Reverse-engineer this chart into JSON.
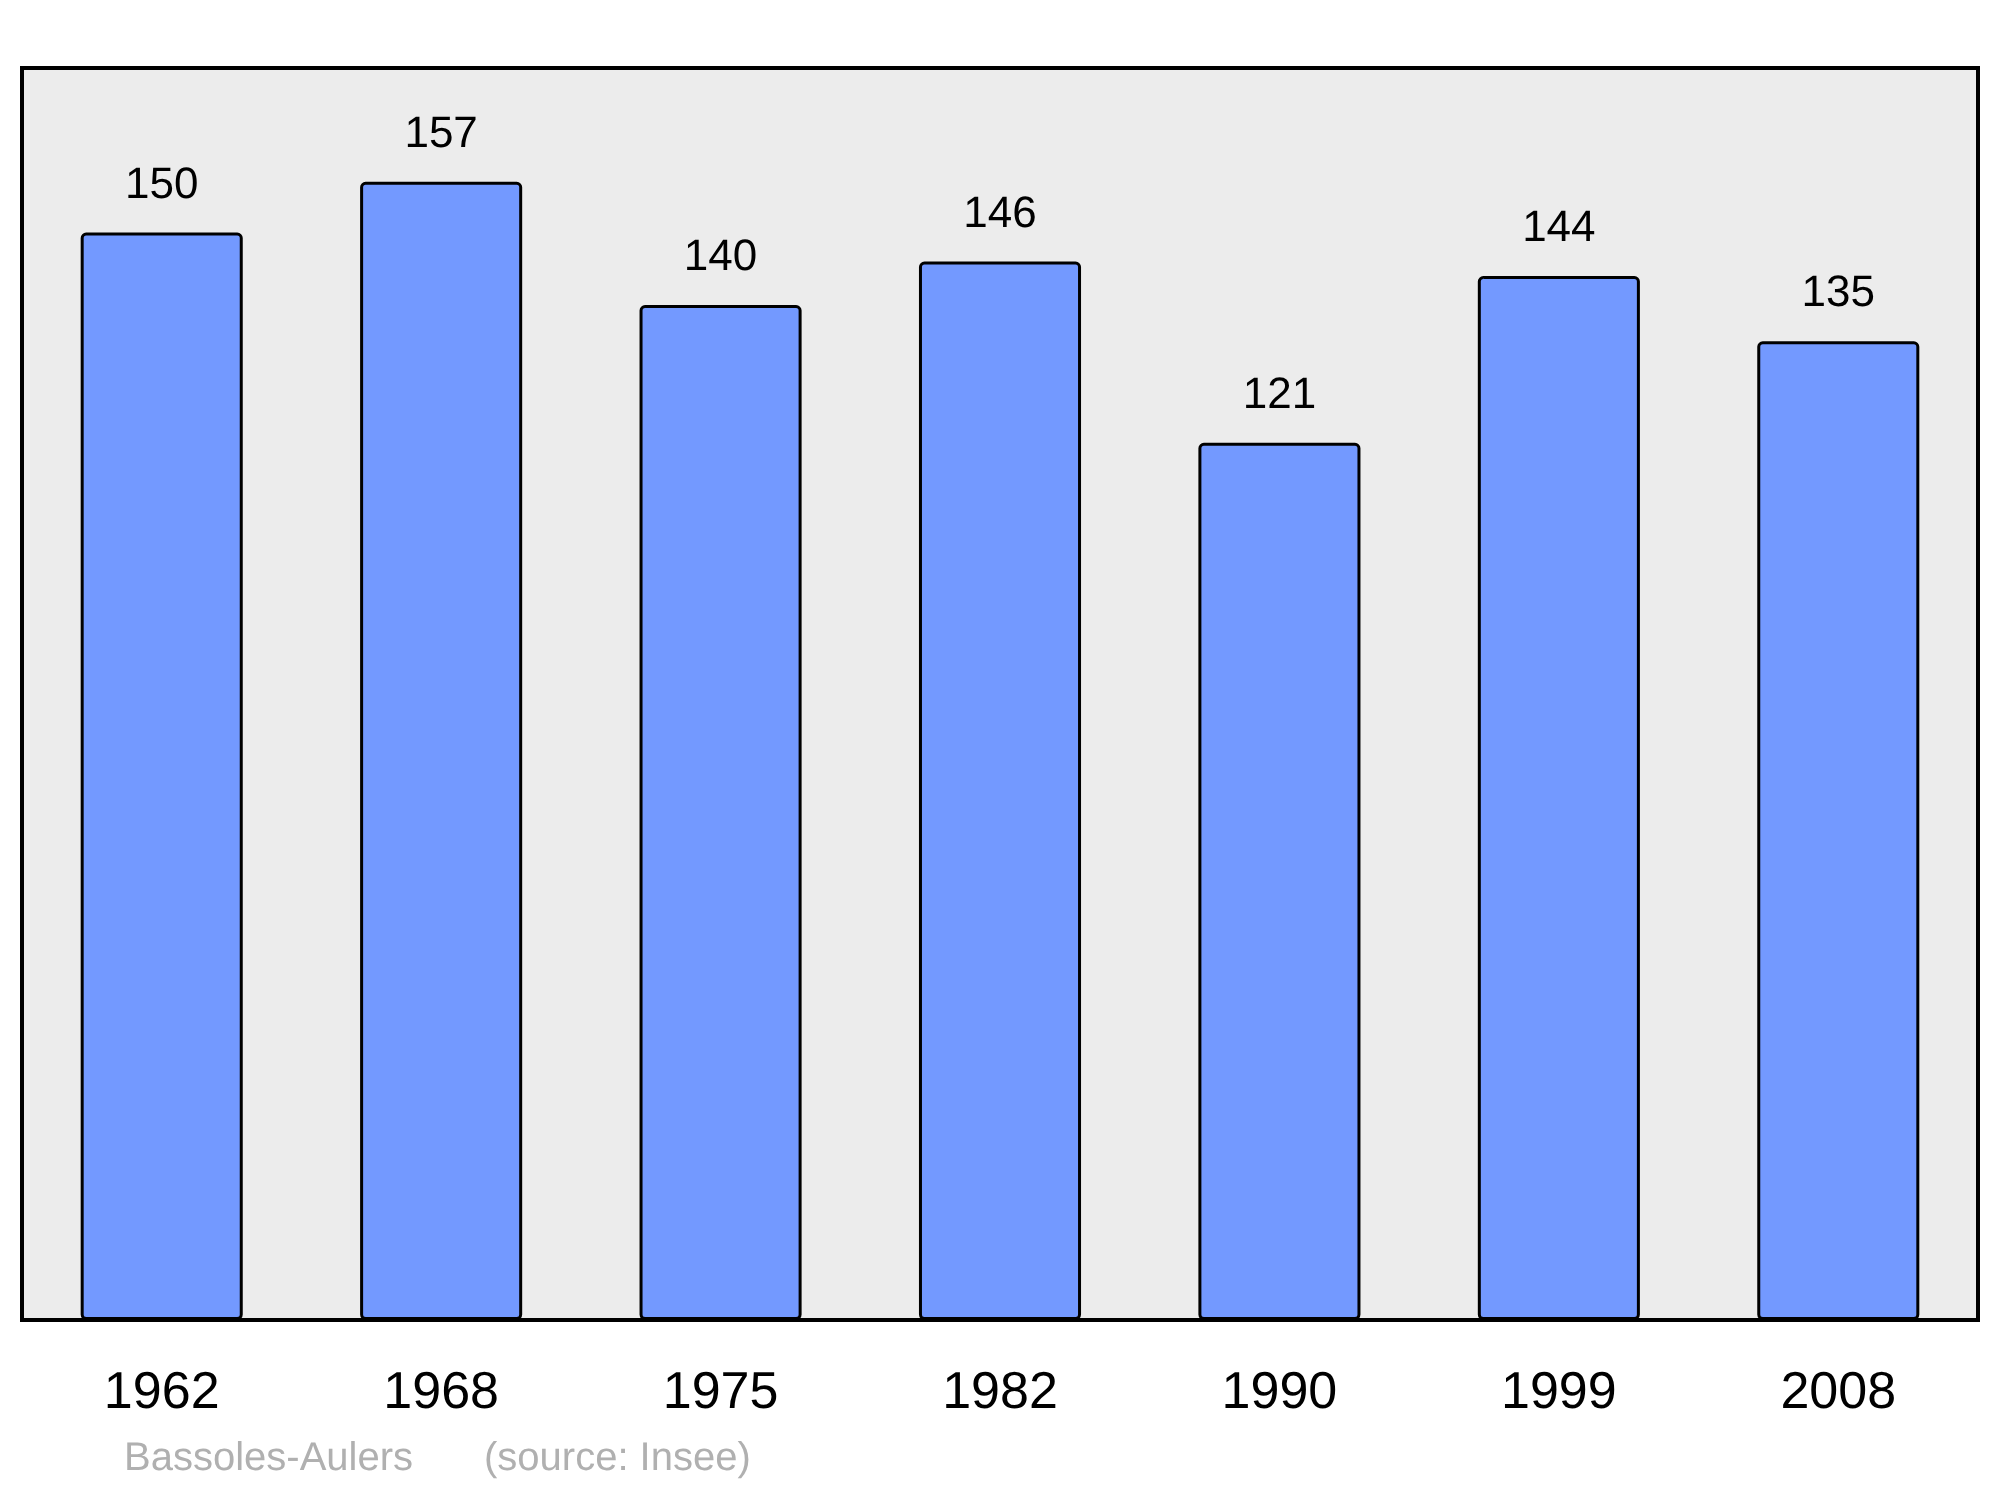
{
  "chart_data": {
    "type": "bar",
    "categories": [
      "1962",
      "1968",
      "1975",
      "1982",
      "1990",
      "1999",
      "2008"
    ],
    "values": [
      150,
      157,
      140,
      146,
      121,
      144,
      135
    ],
    "color": "#7399ff",
    "data_labels": true,
    "grid": false,
    "annotations": [
      "Bassoles-Aulers",
      "(source: Insee)"
    ]
  }
}
